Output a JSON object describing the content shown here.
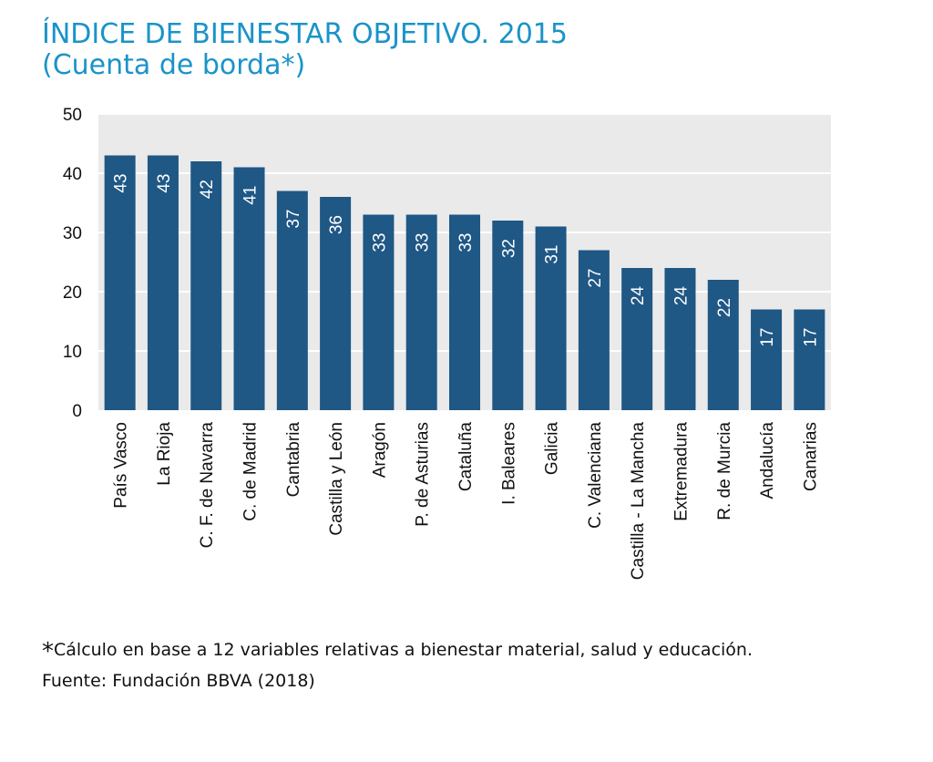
{
  "title": "ÍNDICE DE BIENESTAR OBJETIVO. 2015",
  "subtitle": "(Cuenta de borda*)",
  "footnote": {
    "marker": "*",
    "text": "Cálculo en base a 12 variables relativas a bienestar material, salud y educación.",
    "source": "Fuente: Fundación BBVA (2018)"
  },
  "colors": {
    "title": "#1a93c9",
    "bar": "#1f5785",
    "plot_bg": "#eaeaea",
    "grid": "#ffffff"
  },
  "chart_data": {
    "type": "bar",
    "title": "ÍNDICE DE BIENESTAR OBJETIVO. 2015",
    "subtitle": "(Cuenta de borda*)",
    "xlabel": "",
    "ylabel": "",
    "ylim": [
      0,
      50
    ],
    "yticks": [
      0,
      10,
      20,
      30,
      40,
      50
    ],
    "grid": true,
    "data_labels": true,
    "categories": [
      "País Vasco",
      "La Rioja",
      "C. F. de Navarra",
      "C. de Madrid",
      "Cantabria",
      "Castilla y León",
      "Aragón",
      "P. de Asturias",
      "Cataluña",
      "I. Baleares",
      "Galicia",
      "C. Valenciana",
      "Castilla - La Mancha",
      "Extremadura",
      "R. de Murcia",
      "Andalucía",
      "Canarias"
    ],
    "values": [
      43,
      43,
      42,
      41,
      37,
      36,
      33,
      33,
      33,
      32,
      31,
      27,
      24,
      24,
      22,
      17,
      17
    ]
  }
}
